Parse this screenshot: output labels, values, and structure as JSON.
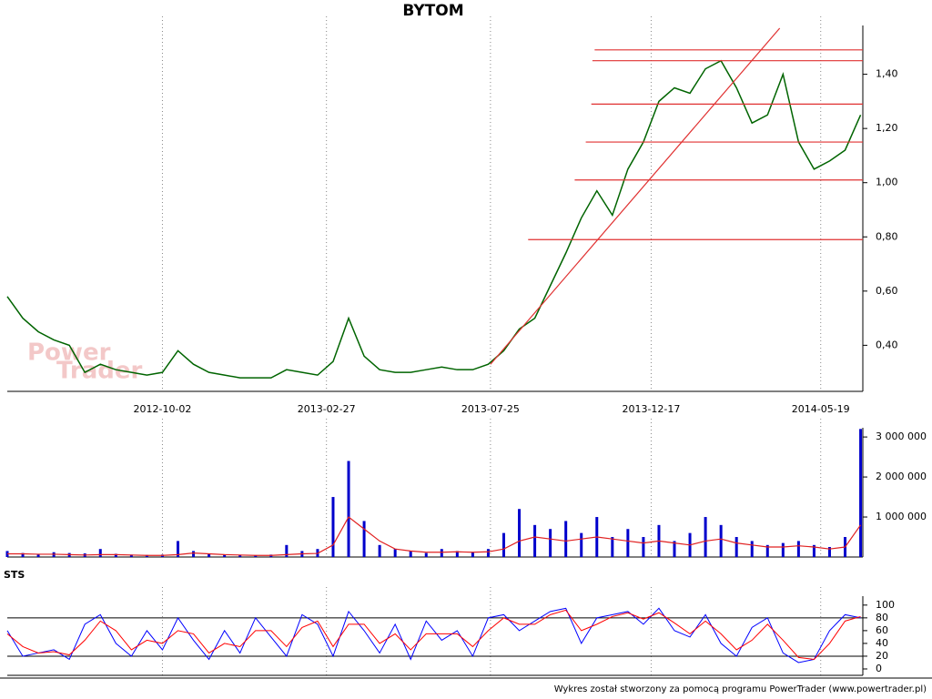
{
  "chart_data": [
    {
      "type": "line",
      "title": "BYTOM",
      "color": "#006400",
      "x": [
        "2012-05-15",
        "2012-05-29",
        "2012-06-12",
        "2012-06-26",
        "2012-07-10",
        "2012-07-24",
        "2012-08-07",
        "2012-08-21",
        "2012-09-04",
        "2012-09-18",
        "2012-10-02",
        "2012-10-16",
        "2012-10-30",
        "2012-11-13",
        "2012-11-27",
        "2012-12-11",
        "2012-12-25",
        "2013-01-08",
        "2013-01-22",
        "2013-02-05",
        "2013-02-19",
        "2013-03-05",
        "2013-03-19",
        "2013-04-02",
        "2013-04-16",
        "2013-04-30",
        "2013-05-14",
        "2013-05-28",
        "2013-06-11",
        "2013-06-25",
        "2013-07-09",
        "2013-07-23",
        "2013-08-06",
        "2013-08-20",
        "2013-09-03",
        "2013-09-17",
        "2013-10-01",
        "2013-10-15",
        "2013-10-29",
        "2013-11-12",
        "2013-11-26",
        "2013-12-10",
        "2013-12-24",
        "2014-01-07",
        "2014-01-21",
        "2014-02-04",
        "2014-02-18",
        "2014-03-04",
        "2014-03-18",
        "2014-04-01",
        "2014-04-15",
        "2014-04-29",
        "2014-05-13",
        "2014-05-27",
        "2014-06-10",
        "2014-06-24"
      ],
      "values": [
        0.58,
        0.5,
        0.45,
        0.42,
        0.4,
        0.3,
        0.33,
        0.31,
        0.3,
        0.29,
        0.3,
        0.38,
        0.33,
        0.3,
        0.29,
        0.28,
        0.28,
        0.28,
        0.31,
        0.3,
        0.29,
        0.34,
        0.5,
        0.36,
        0.31,
        0.3,
        0.3,
        0.31,
        0.32,
        0.31,
        0.31,
        0.33,
        0.38,
        0.46,
        0.5,
        0.62,
        0.74,
        0.87,
        0.97,
        0.88,
        1.05,
        1.15,
        1.3,
        1.35,
        1.33,
        1.42,
        1.45,
        1.35,
        1.22,
        1.25,
        1.4,
        1.15,
        1.05,
        1.08,
        1.12,
        1.25
      ],
      "xlim": [
        "2012-05-15",
        "2014-06-26"
      ],
      "xticks": [
        "2012-10-02",
        "2013-02-27",
        "2013-07-25",
        "2013-12-17",
        "2014-05-19"
      ],
      "ylim": [
        0.23,
        1.58
      ],
      "yticks": [
        {
          "value": 0.4,
          "label": "0,40"
        },
        {
          "value": 0.6,
          "label": "0,60"
        },
        {
          "value": 0.8,
          "label": "0,80"
        },
        {
          "value": 1.0,
          "label": "1,00"
        },
        {
          "value": 1.2,
          "label": "1,20"
        },
        {
          "value": 1.4,
          "label": "1,40"
        }
      ],
      "grid": true,
      "level_color": "#e03030",
      "levels": [
        {
          "value": 1.49,
          "x": "2013-10-27"
        },
        {
          "value": 1.45,
          "x": "2013-10-25"
        },
        {
          "value": 1.29,
          "x": "2013-10-24"
        },
        {
          "value": 1.15,
          "x": "2013-10-19"
        },
        {
          "value": 1.01,
          "x": "2013-10-09"
        },
        {
          "value": 0.79,
          "x": "2013-08-28"
        }
      ],
      "trendline": {
        "x": [
          "2013-07-25",
          "2014-04-12"
        ],
        "y": [
          0.33,
          1.57
        ]
      },
      "watermark": [
        "Power",
        "Trader"
      ]
    },
    {
      "type": "bar",
      "series": [
        {
          "color": "#0000cc",
          "values": [
            150000,
            100000,
            80000,
            120000,
            100000,
            90000,
            200000,
            80000,
            60000,
            50000,
            60000,
            400000,
            150000,
            80000,
            60000,
            50000,
            40000,
            60000,
            300000,
            150000,
            200000,
            1500000,
            2400000,
            900000,
            300000,
            200000,
            150000,
            100000,
            200000,
            150000,
            120000,
            200000,
            600000,
            1200000,
            800000,
            700000,
            900000,
            600000,
            1000000,
            500000,
            700000,
            500000,
            800000,
            400000,
            600000,
            1000000,
            800000,
            500000,
            400000,
            300000,
            350000,
            400000,
            300000,
            250000,
            500000,
            3200000
          ]
        },
        {
          "color": "#e02020",
          "type": "line",
          "values": [
            80000,
            80000,
            70000,
            70000,
            60000,
            50000,
            60000,
            60000,
            50000,
            40000,
            40000,
            60000,
            100000,
            80000,
            60000,
            50000,
            40000,
            40000,
            60000,
            80000,
            90000,
            300000,
            1000000,
            700000,
            400000,
            200000,
            150000,
            120000,
            120000,
            130000,
            120000,
            130000,
            200000,
            400000,
            500000,
            450000,
            400000,
            450000,
            500000,
            450000,
            400000,
            350000,
            400000,
            350000,
            300000,
            400000,
            450000,
            350000,
            300000,
            250000,
            250000,
            280000,
            250000,
            200000,
            250000,
            800000
          ]
        }
      ],
      "ylim": [
        0,
        3230000
      ],
      "yticks": [
        {
          "value": 1000000,
          "label": "1 000 000"
        },
        {
          "value": 2000000,
          "label": "2 000 000"
        },
        {
          "value": 3000000,
          "label": "3 000 000"
        }
      ]
    },
    {
      "type": "line",
      "title": "STS",
      "series": [
        {
          "color": "#0000ff",
          "values": [
            60,
            20,
            25,
            30,
            15,
            70,
            85,
            40,
            20,
            60,
            30,
            80,
            45,
            15,
            60,
            25,
            80,
            50,
            20,
            85,
            70,
            20,
            90,
            60,
            25,
            70,
            15,
            75,
            45,
            60,
            20,
            80,
            85,
            60,
            75,
            90,
            95,
            40,
            80,
            85,
            90,
            70,
            95,
            60,
            50,
            85,
            40,
            20,
            65,
            80,
            25,
            10,
            15,
            60,
            85,
            80
          ]
        },
        {
          "color": "#ff0000",
          "values": [
            55,
            35,
            25,
            27,
            22,
            45,
            75,
            60,
            30,
            45,
            40,
            60,
            55,
            25,
            40,
            35,
            60,
            60,
            35,
            65,
            75,
            35,
            70,
            70,
            40,
            55,
            30,
            55,
            55,
            55,
            35,
            60,
            80,
            70,
            70,
            85,
            92,
            60,
            70,
            82,
            88,
            78,
            88,
            72,
            55,
            75,
            55,
            30,
            45,
            70,
            45,
            18,
            15,
            40,
            75,
            82
          ]
        }
      ],
      "ylim": [
        -10,
        114
      ],
      "yticks": [
        0,
        20,
        40,
        60,
        80,
        100
      ],
      "ref_lines": [
        20,
        80
      ]
    }
  ],
  "footer": "Wykres został stworzony za pomocą programu PowerTrader (www.powertrader.pl)"
}
